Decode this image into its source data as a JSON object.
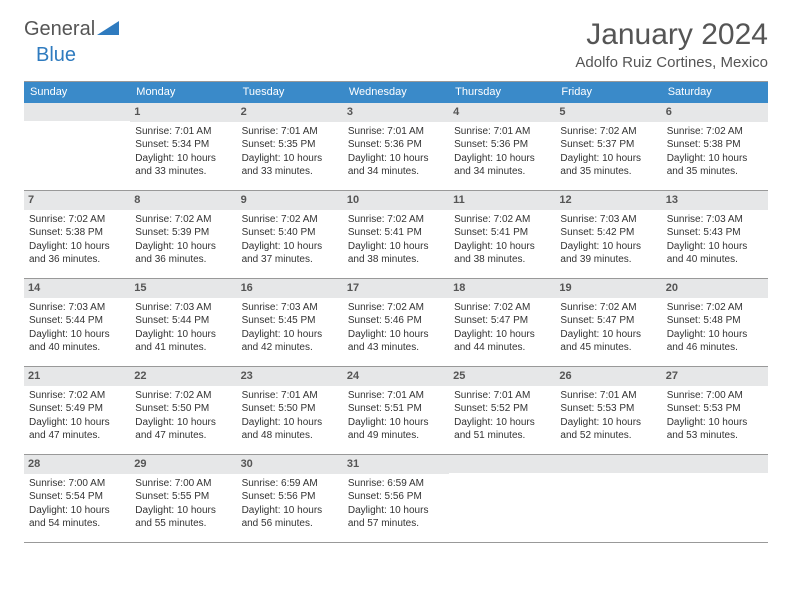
{
  "logo": {
    "general": "General",
    "blue": "Blue"
  },
  "title": "January 2024",
  "location": "Adolfo Ruiz Cortines, Mexico",
  "colors": {
    "header_bg": "#3a8ac9",
    "header_text": "#ffffff",
    "daynum_bg": "#e6e7e8",
    "text": "#333333",
    "rule": "#999999",
    "logo_blue": "#2f7bbf"
  },
  "weekdays": [
    "Sunday",
    "Monday",
    "Tuesday",
    "Wednesday",
    "Thursday",
    "Friday",
    "Saturday"
  ],
  "start_weekday": 1,
  "days": [
    {
      "n": 1,
      "sunrise": "7:01 AM",
      "sunset": "5:34 PM",
      "daylight": "10 hours and 33 minutes."
    },
    {
      "n": 2,
      "sunrise": "7:01 AM",
      "sunset": "5:35 PM",
      "daylight": "10 hours and 33 minutes."
    },
    {
      "n": 3,
      "sunrise": "7:01 AM",
      "sunset": "5:36 PM",
      "daylight": "10 hours and 34 minutes."
    },
    {
      "n": 4,
      "sunrise": "7:01 AM",
      "sunset": "5:36 PM",
      "daylight": "10 hours and 34 minutes."
    },
    {
      "n": 5,
      "sunrise": "7:02 AM",
      "sunset": "5:37 PM",
      "daylight": "10 hours and 35 minutes."
    },
    {
      "n": 6,
      "sunrise": "7:02 AM",
      "sunset": "5:38 PM",
      "daylight": "10 hours and 35 minutes."
    },
    {
      "n": 7,
      "sunrise": "7:02 AM",
      "sunset": "5:38 PM",
      "daylight": "10 hours and 36 minutes."
    },
    {
      "n": 8,
      "sunrise": "7:02 AM",
      "sunset": "5:39 PM",
      "daylight": "10 hours and 36 minutes."
    },
    {
      "n": 9,
      "sunrise": "7:02 AM",
      "sunset": "5:40 PM",
      "daylight": "10 hours and 37 minutes."
    },
    {
      "n": 10,
      "sunrise": "7:02 AM",
      "sunset": "5:41 PM",
      "daylight": "10 hours and 38 minutes."
    },
    {
      "n": 11,
      "sunrise": "7:02 AM",
      "sunset": "5:41 PM",
      "daylight": "10 hours and 38 minutes."
    },
    {
      "n": 12,
      "sunrise": "7:03 AM",
      "sunset": "5:42 PM",
      "daylight": "10 hours and 39 minutes."
    },
    {
      "n": 13,
      "sunrise": "7:03 AM",
      "sunset": "5:43 PM",
      "daylight": "10 hours and 40 minutes."
    },
    {
      "n": 14,
      "sunrise": "7:03 AM",
      "sunset": "5:44 PM",
      "daylight": "10 hours and 40 minutes."
    },
    {
      "n": 15,
      "sunrise": "7:03 AM",
      "sunset": "5:44 PM",
      "daylight": "10 hours and 41 minutes."
    },
    {
      "n": 16,
      "sunrise": "7:03 AM",
      "sunset": "5:45 PM",
      "daylight": "10 hours and 42 minutes."
    },
    {
      "n": 17,
      "sunrise": "7:02 AM",
      "sunset": "5:46 PM",
      "daylight": "10 hours and 43 minutes."
    },
    {
      "n": 18,
      "sunrise": "7:02 AM",
      "sunset": "5:47 PM",
      "daylight": "10 hours and 44 minutes."
    },
    {
      "n": 19,
      "sunrise": "7:02 AM",
      "sunset": "5:47 PM",
      "daylight": "10 hours and 45 minutes."
    },
    {
      "n": 20,
      "sunrise": "7:02 AM",
      "sunset": "5:48 PM",
      "daylight": "10 hours and 46 minutes."
    },
    {
      "n": 21,
      "sunrise": "7:02 AM",
      "sunset": "5:49 PM",
      "daylight": "10 hours and 47 minutes."
    },
    {
      "n": 22,
      "sunrise": "7:02 AM",
      "sunset": "5:50 PM",
      "daylight": "10 hours and 47 minutes."
    },
    {
      "n": 23,
      "sunrise": "7:01 AM",
      "sunset": "5:50 PM",
      "daylight": "10 hours and 48 minutes."
    },
    {
      "n": 24,
      "sunrise": "7:01 AM",
      "sunset": "5:51 PM",
      "daylight": "10 hours and 49 minutes."
    },
    {
      "n": 25,
      "sunrise": "7:01 AM",
      "sunset": "5:52 PM",
      "daylight": "10 hours and 51 minutes."
    },
    {
      "n": 26,
      "sunrise": "7:01 AM",
      "sunset": "5:53 PM",
      "daylight": "10 hours and 52 minutes."
    },
    {
      "n": 27,
      "sunrise": "7:00 AM",
      "sunset": "5:53 PM",
      "daylight": "10 hours and 53 minutes."
    },
    {
      "n": 28,
      "sunrise": "7:00 AM",
      "sunset": "5:54 PM",
      "daylight": "10 hours and 54 minutes."
    },
    {
      "n": 29,
      "sunrise": "7:00 AM",
      "sunset": "5:55 PM",
      "daylight": "10 hours and 55 minutes."
    },
    {
      "n": 30,
      "sunrise": "6:59 AM",
      "sunset": "5:56 PM",
      "daylight": "10 hours and 56 minutes."
    },
    {
      "n": 31,
      "sunrise": "6:59 AM",
      "sunset": "5:56 PM",
      "daylight": "10 hours and 57 minutes."
    }
  ],
  "labels": {
    "sunrise": "Sunrise:",
    "sunset": "Sunset:",
    "daylight": "Daylight:"
  }
}
